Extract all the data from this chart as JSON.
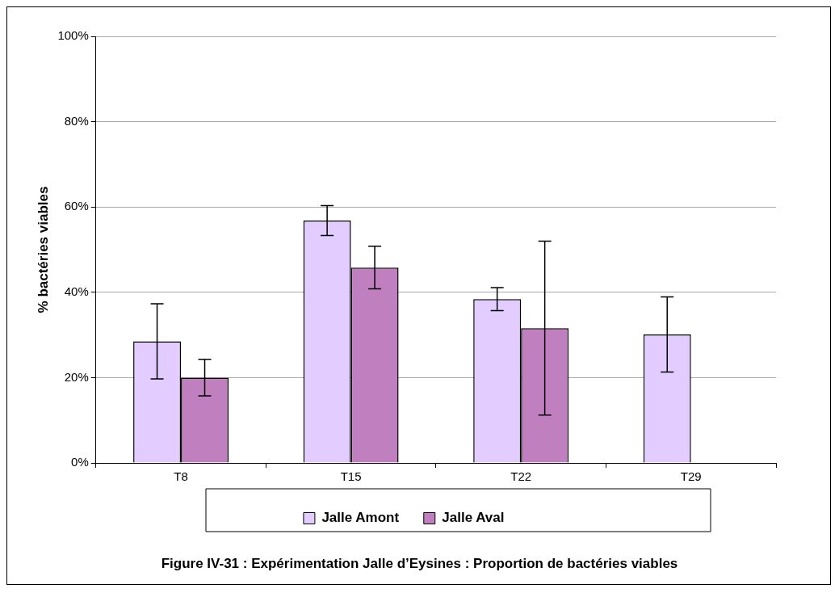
{
  "chart_data": {
    "type": "bar",
    "ylabel": "% bactéries viables",
    "categories": [
      "T8",
      "T15",
      "T22",
      "T29"
    ],
    "series": [
      {
        "name": "Jalle Amont",
        "color": "#e3ccff",
        "values": [
          28.5,
          56.8,
          38.4,
          30.1
        ],
        "errors": [
          8.8,
          3.5,
          2.7,
          8.8
        ]
      },
      {
        "name": "Jalle Aval",
        "color": "#c080c0",
        "values": [
          20,
          45.8,
          31.6,
          null
        ],
        "errors": [
          4.3,
          5.0,
          20.4,
          null
        ]
      }
    ],
    "ylim": [
      0,
      100
    ],
    "yticks": [
      {
        "value": 0,
        "label": "0%"
      },
      {
        "value": 20,
        "label": "20%"
      },
      {
        "value": 40,
        "label": "40%"
      },
      {
        "value": 60,
        "label": "60%"
      },
      {
        "value": 80,
        "label": "80%"
      },
      {
        "value": 100,
        "label": "100%"
      }
    ],
    "grid": "y",
    "legend": "bottom",
    "annotations": [
      "Figure IV-31 : Expérimentation Jalle d’Eysines : Proportion de bactéries viables"
    ]
  }
}
